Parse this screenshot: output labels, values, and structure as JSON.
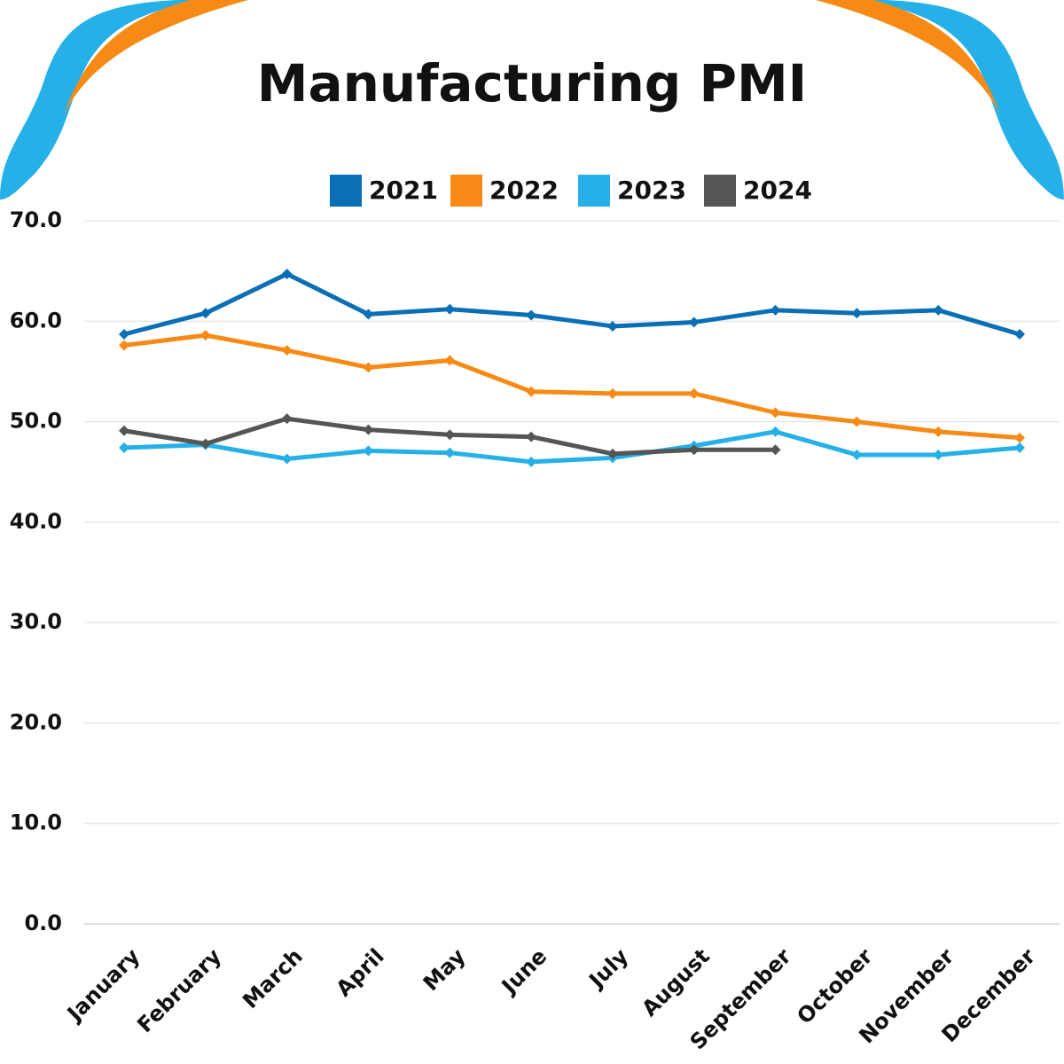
{
  "chart_data": {
    "type": "line",
    "title": "Manufacturing PMI",
    "categories": [
      "January",
      "February",
      "March",
      "April",
      "May",
      "June",
      "July",
      "August",
      "September",
      "October",
      "November",
      "December"
    ],
    "series": [
      {
        "name": "2021",
        "color": "#0a6fb5",
        "values": [
          58.7,
          60.8,
          64.7,
          60.7,
          61.2,
          60.6,
          59.5,
          59.9,
          61.1,
          60.8,
          61.1,
          58.7
        ]
      },
      {
        "name": "2022",
        "color": "#f78a14",
        "values": [
          57.6,
          58.6,
          57.1,
          55.4,
          56.1,
          53.0,
          52.8,
          52.8,
          50.9,
          50.0,
          49.0,
          48.4
        ]
      },
      {
        "name": "2023",
        "color": "#25b0e8",
        "values": [
          47.4,
          47.7,
          46.3,
          47.1,
          46.9,
          46.0,
          46.4,
          47.6,
          49.0,
          46.7,
          46.7,
          47.4
        ]
      },
      {
        "name": "2024",
        "color": "#555555",
        "values": [
          49.1,
          47.8,
          50.3,
          49.2,
          48.7,
          48.5,
          46.8,
          47.2,
          47.2,
          null,
          null,
          null
        ]
      }
    ],
    "ylim": [
      0,
      70
    ],
    "yticks": [
      {
        "value": 0,
        "label": "0.0"
      },
      {
        "value": 10,
        "label": "10.0"
      },
      {
        "value": 20,
        "label": "20.0"
      },
      {
        "value": 30,
        "label": "30.0"
      },
      {
        "value": 40,
        "label": "40.0"
      },
      {
        "value": 50,
        "label": "50.0"
      },
      {
        "value": 60,
        "label": "60.0"
      },
      {
        "value": 70,
        "label": "70.0"
      }
    ],
    "grid": true,
    "legend": "top"
  }
}
